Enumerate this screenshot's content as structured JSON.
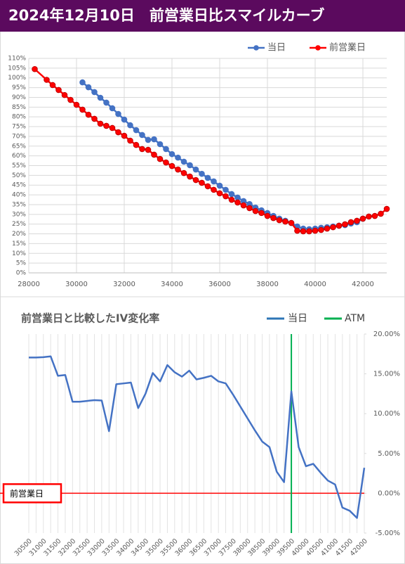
{
  "header": {
    "title": "2024年12月10日　前営業日比スマイルカーブ"
  },
  "chart_data": [
    {
      "type": "line",
      "grid": true,
      "legend": "top",
      "xlim": [
        28000,
        43000
      ],
      "xticks": [
        28000,
        30000,
        32000,
        34000,
        36000,
        38000,
        40000,
        42000
      ],
      "ylim": [
        0,
        110
      ],
      "yticks": [
        {
          "value": 0,
          "label": "0%"
        },
        {
          "value": 5,
          "label": "5%"
        },
        {
          "value": 10,
          "label": "10%"
        },
        {
          "value": 15,
          "label": "15%"
        },
        {
          "value": 20,
          "label": "20%"
        },
        {
          "value": 25,
          "label": "25%"
        },
        {
          "value": 30,
          "label": "30%"
        },
        {
          "value": 35,
          "label": "35%"
        },
        {
          "value": 40,
          "label": "40%"
        },
        {
          "value": 45,
          "label": "45%"
        },
        {
          "value": 50,
          "label": "50%"
        },
        {
          "value": 55,
          "label": "55%"
        },
        {
          "value": 60,
          "label": "60%"
        },
        {
          "value": 65,
          "label": "65%"
        },
        {
          "value": 70,
          "label": "70%"
        },
        {
          "value": 75,
          "label": "75%"
        },
        {
          "value": 80,
          "label": "80%"
        },
        {
          "value": 85,
          "label": "85%"
        },
        {
          "value": 90,
          "label": "90%"
        },
        {
          "value": 95,
          "label": "95%"
        },
        {
          "value": 100,
          "label": "100%"
        },
        {
          "value": 105,
          "label": "105%"
        },
        {
          "value": 110,
          "label": "110%"
        }
      ],
      "series": [
        {
          "name": "当日",
          "color": "#4472c4",
          "x": [
            30250,
            30500,
            30750,
            31000,
            31250,
            31500,
            31750,
            32000,
            32250,
            32500,
            32750,
            33000,
            33250,
            33500,
            33750,
            34000,
            34250,
            34500,
            34750,
            35000,
            35250,
            35500,
            35750,
            36000,
            36250,
            36500,
            36750,
            37000,
            37250,
            37500,
            37750,
            38000,
            38250,
            38500,
            38750,
            39000,
            39250,
            39500,
            39750,
            40000,
            40250,
            40500,
            40750,
            41000,
            41250,
            41500,
            41750,
            42000
          ],
          "values": [
            97.7,
            95.2,
            92.7,
            89.8,
            87.3,
            84.4,
            81.5,
            78.6,
            75.7,
            73.2,
            70.7,
            68.2,
            68.5,
            66,
            63.5,
            60.9,
            59.1,
            57,
            55.2,
            53,
            50.8,
            48.7,
            46.9,
            44.7,
            42.6,
            40.4,
            38.6,
            36.8,
            35.3,
            33.5,
            32.1,
            30.7,
            29.2,
            27.8,
            26.7,
            25.6,
            23.8,
            22.7,
            22.4,
            22.7,
            23.1,
            23.4,
            23.8,
            24.2,
            24.5,
            25.3,
            26,
            27.8
          ]
        },
        {
          "name": "前営業日",
          "color": "#ff0000",
          "x": [
            28250,
            28750,
            29000,
            29250,
            29500,
            29750,
            30000,
            30250,
            30500,
            30750,
            31000,
            31250,
            31500,
            31750,
            32000,
            32250,
            32500,
            32750,
            33000,
            33250,
            33500,
            33750,
            34000,
            34250,
            34500,
            34750,
            35000,
            35250,
            35500,
            35750,
            36000,
            36250,
            36500,
            36750,
            37000,
            37250,
            37500,
            37750,
            38000,
            38250,
            38500,
            38750,
            39000,
            39250,
            39500,
            39750,
            40000,
            40250,
            40500,
            40750,
            41000,
            41250,
            41500,
            41750,
            42000,
            42250,
            42500,
            42750,
            43000
          ],
          "values": [
            104.5,
            99,
            96.3,
            93.8,
            91.2,
            88.7,
            86.2,
            83.7,
            81.1,
            79,
            76.5,
            75.4,
            74.3,
            72.1,
            70.3,
            67.8,
            65.6,
            63.5,
            63.1,
            60.6,
            58.4,
            56.6,
            54.8,
            53,
            51.2,
            49.4,
            47.6,
            46.2,
            44.4,
            42.6,
            40.8,
            39.3,
            37.5,
            36.1,
            34.6,
            33.2,
            31.7,
            30.7,
            29.2,
            28.1,
            27,
            26.3,
            25.6,
            21.6,
            21.3,
            21.3,
            21.6,
            22,
            22.7,
            23.4,
            24.2,
            24.9,
            26,
            26.7,
            27.8,
            28.9,
            29.2,
            30.3,
            32.8
          ]
        }
      ]
    },
    {
      "type": "line",
      "title": "前営業日と比較したIV変化率",
      "grid": true,
      "legend": "top",
      "y_axis_side": "right",
      "categories": [
        "30500",
        null,
        "31000",
        null,
        "31500",
        null,
        "32000",
        null,
        "32500",
        null,
        "33000",
        null,
        "33500",
        null,
        "34000",
        null,
        "34500",
        null,
        "35000",
        null,
        "35500",
        null,
        "36000",
        null,
        "36500",
        null,
        "37000",
        null,
        "37500",
        null,
        "38000",
        null,
        "38500",
        null,
        "39000",
        null,
        "39500",
        null,
        "40000",
        null,
        "40500",
        null,
        "41000",
        null,
        "41500",
        null,
        "42000"
      ],
      "ylim": [
        -5,
        20
      ],
      "yticks": [
        {
          "value": -5,
          "label": "-5.00%"
        },
        {
          "value": 0,
          "label": "0.00%"
        },
        {
          "value": 5,
          "label": "5.00%"
        },
        {
          "value": 10,
          "label": "10.00%"
        },
        {
          "value": 15,
          "label": "15.00%"
        },
        {
          "value": 20,
          "label": "20.00%"
        }
      ],
      "series": [
        {
          "name": "当日",
          "color": "#4472c4",
          "values": [
            17.05,
            17.05,
            17.1,
            17.2,
            14.75,
            14.85,
            11.5,
            11.5,
            11.6,
            11.7,
            11.65,
            7.8,
            13.7,
            13.8,
            13.9,
            10.7,
            12.5,
            15.1,
            14.05,
            16.1,
            15.2,
            14.65,
            15.4,
            14.3,
            14.5,
            14.75,
            14.05,
            13.8,
            12.4,
            10.9,
            9.4,
            7.9,
            6.5,
            5.8,
            2.7,
            1.4,
            12.8,
            5.8,
            3.4,
            3.7,
            2.6,
            1.6,
            1.1,
            -1.8,
            -2.2,
            -3.1,
            3.2
          ]
        }
      ],
      "atm": {
        "name": "ATM",
        "x": "39500",
        "color": "#00b050"
      },
      "baseline": {
        "label": "前営業日",
        "value": 0,
        "color": "#ff0000"
      }
    }
  ]
}
